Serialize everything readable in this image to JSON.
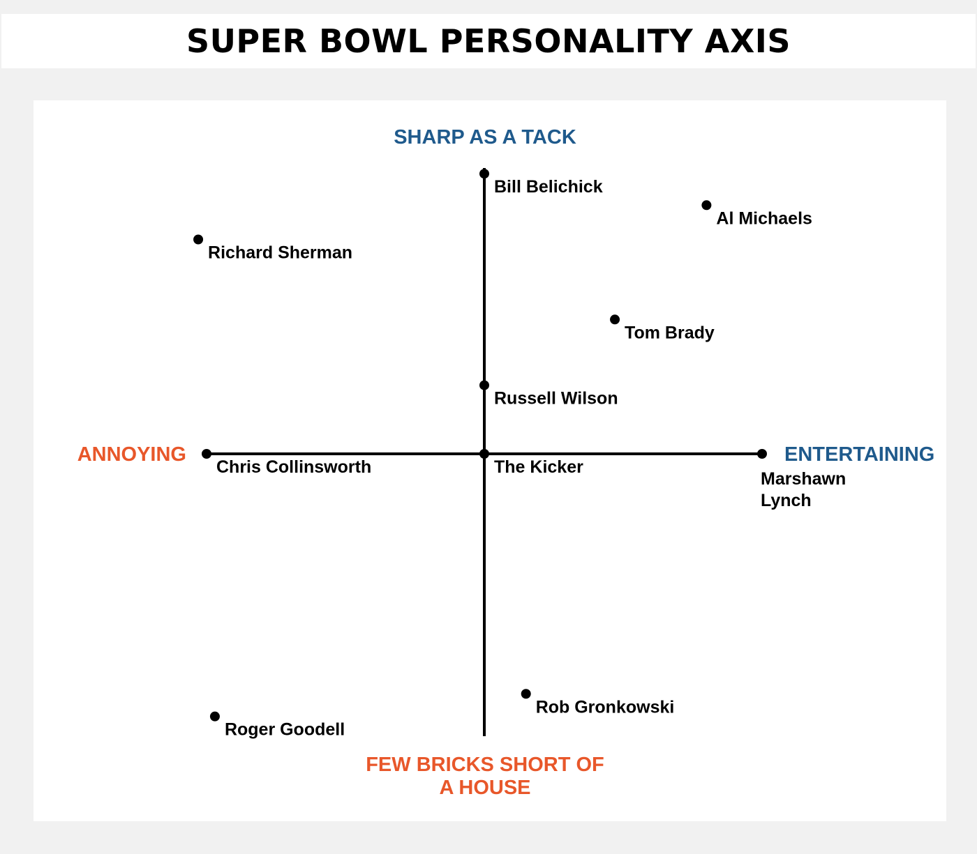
{
  "title": "SUPER BOWL PERSONALITY AXIS",
  "colors": {
    "page_background": "#f1f1f1",
    "panel_background": "#ffffff",
    "blue_label": "#1f5a8c",
    "orange_label": "#e8572a",
    "axis": "#000000",
    "point": "#000000"
  },
  "chart_data": {
    "type": "scatter",
    "title": "SUPER BOWL PERSONALITY AXIS",
    "axis_labels": {
      "top": "SHARP AS A TACK",
      "bottom": [
        "FEW BRICKS SHORT OF",
        "A HOUSE"
      ],
      "left": "ANNOYING",
      "right": "ENTERTAINING"
    },
    "xlim": [
      -100,
      100
    ],
    "ylim": [
      -100,
      100
    ],
    "grid": false,
    "legend": "none",
    "points": [
      {
        "name": [
          "Bill Belichick"
        ],
        "x": 0,
        "y": 98
      },
      {
        "name": [
          "Al Michaels"
        ],
        "x": 80,
        "y": 87
      },
      {
        "name": [
          "Richard Sherman"
        ],
        "x": -103,
        "y": 75
      },
      {
        "name": [
          "Tom Brady"
        ],
        "x": 47,
        "y": 47
      },
      {
        "name": [
          "Russell Wilson"
        ],
        "x": 0,
        "y": 24
      },
      {
        "name": [
          "Chris Collinsworth"
        ],
        "x": -100,
        "y": 0
      },
      {
        "name": [
          "The Kicker"
        ],
        "x": 0,
        "y": 0
      },
      {
        "name": [
          "Marshawn",
          "Lynch"
        ],
        "x": 100,
        "y": 0
      },
      {
        "name": [
          "Rob Gronkowski"
        ],
        "x": 15,
        "y": -85
      },
      {
        "name": [
          "Roger Goodell"
        ],
        "x": -97,
        "y": -93
      }
    ]
  }
}
